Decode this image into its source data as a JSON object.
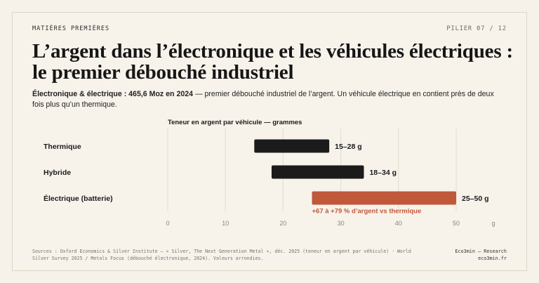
{
  "header": {
    "kicker": "MATIÈRES PREMIÈRES",
    "pillar": "PILIER 07 / 12",
    "title": "L’argent dans l’électronique et les véhicules électriques : le premier débouché industriel",
    "lede_bold": "Électronique & électrique : 465,6 Moz en 2024",
    "lede_rest": " — premier débouché industriel de l’argent. Un véhicule électrique en contient près de deux fois plus qu’un thermique."
  },
  "colors": {
    "bar_dark": "#1b1b1b",
    "bar_accent": "#c0583a",
    "grid": "#e2dccf",
    "background": "#f7f3eb"
  },
  "chart_data": {
    "type": "bar",
    "orientation": "horizontal-range",
    "title": "Teneur en argent par véhicule — grammes",
    "xlabel": "g",
    "xlim": [
      0,
      55
    ],
    "xticks": [
      0,
      10,
      20,
      30,
      40,
      50
    ],
    "grid": true,
    "series": [
      {
        "category": "Thermique",
        "low": 15,
        "high": 28,
        "label": "15–28 g",
        "highlight": false
      },
      {
        "category": "Hybride",
        "low": 18,
        "high": 34,
        "label": "18–34 g",
        "highlight": false
      },
      {
        "category": "Électrique (batterie)",
        "low": 25,
        "high": 50,
        "label": "25–50 g",
        "highlight": true
      }
    ],
    "annotation": "+67 à +79 % d’argent vs thermique"
  },
  "footer": {
    "sources": "Sources : Oxford Economics & Silver Institute — « Silver, The Next Generation Metal », déc. 2025 (teneur en argent par véhicule) · World Silver Survey 2025 / Metals Focus (débouché électronique, 2024). Valeurs arrondies.",
    "brand_line1": "Eco3min — Research",
    "brand_line2": "eco3min.fr"
  }
}
